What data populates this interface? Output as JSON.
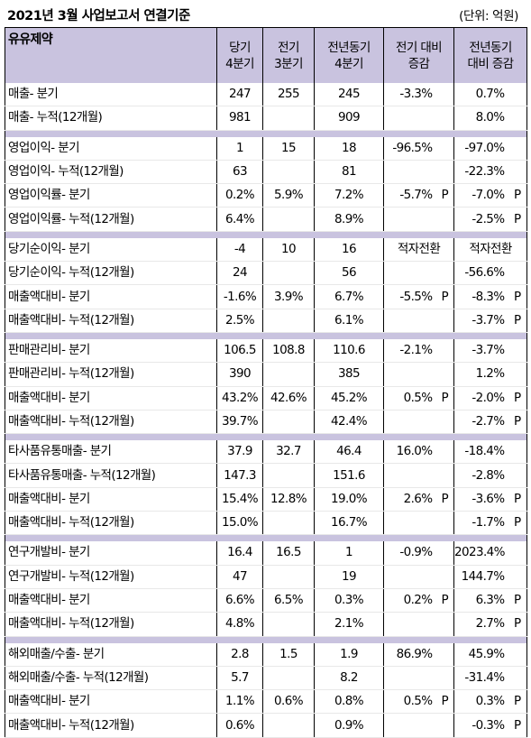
{
  "header": {
    "title": "2021년 3월 사업보고서 연결기준",
    "unit": "(단위: 억원)"
  },
  "table": {
    "company": "유유제약",
    "columns": [
      [
        "당기",
        "4분기"
      ],
      [
        "전기",
        "3분기"
      ],
      [
        "전년동기",
        "4분기"
      ],
      [
        "전기 대비",
        "증감"
      ],
      [
        "전년동기",
        "대비 증감"
      ]
    ],
    "sections": [
      {
        "rows": [
          {
            "label": "매출- 분기",
            "cur": "247",
            "prev": "255",
            "yoy": "245",
            "qoq": "-3.3%",
            "qoq_p": "",
            "yoy_chg": "0.7%",
            "yoy_p": ""
          },
          {
            "label": "매출- 누적(12개월)",
            "cur": "981",
            "prev": "",
            "yoy": "909",
            "qoq": "",
            "qoq_p": "",
            "yoy_chg": "8.0%",
            "yoy_p": ""
          }
        ]
      },
      {
        "rows": [
          {
            "label": "영업이익- 분기",
            "cur": "1",
            "prev": "15",
            "yoy": "18",
            "qoq": "-96.5%",
            "qoq_p": "",
            "yoy_chg": "-97.0%",
            "yoy_p": ""
          },
          {
            "label": "영업이익- 누적(12개월)",
            "cur": "63",
            "prev": "",
            "yoy": "81",
            "qoq": "",
            "qoq_p": "",
            "yoy_chg": "-22.3%",
            "yoy_p": ""
          },
          {
            "label": "영업이익률- 분기",
            "cur": "0.2%",
            "prev": "5.9%",
            "yoy": "7.2%",
            "qoq": "-5.7%",
            "qoq_p": "P",
            "yoy_chg": "-7.0%",
            "yoy_p": "P"
          },
          {
            "label": "영업이익률- 누적(12개월)",
            "cur": "6.4%",
            "prev": "",
            "yoy": "8.9%",
            "qoq": "",
            "qoq_p": "",
            "yoy_chg": "-2.5%",
            "yoy_p": "P"
          }
        ]
      },
      {
        "rows": [
          {
            "label": "당기순이익- 분기",
            "cur": "-4",
            "prev": "10",
            "yoy": "16",
            "qoq": "적자전환",
            "qoq_p": "",
            "yoy_chg": "적자전환",
            "yoy_p": "",
            "text_change": true
          },
          {
            "label": "당기순이익- 누적(12개월)",
            "cur": "24",
            "prev": "",
            "yoy": "56",
            "qoq": "",
            "qoq_p": "",
            "yoy_chg": "-56.6%",
            "yoy_p": ""
          },
          {
            "label": "매출액대비- 분기",
            "cur": "-1.6%",
            "prev": "3.9%",
            "yoy": "6.7%",
            "qoq": "-5.5%",
            "qoq_p": "P",
            "yoy_chg": "-8.3%",
            "yoy_p": "P"
          },
          {
            "label": "매출액대비- 누적(12개월)",
            "cur": "2.5%",
            "prev": "",
            "yoy": "6.1%",
            "qoq": "",
            "qoq_p": "",
            "yoy_chg": "-3.7%",
            "yoy_p": "P"
          }
        ]
      },
      {
        "rows": [
          {
            "label": "판매관리비- 분기",
            "cur": "106.5",
            "prev": "108.8",
            "yoy": "110.6",
            "qoq": "-2.1%",
            "qoq_p": "",
            "yoy_chg": "-3.7%",
            "yoy_p": ""
          },
          {
            "label": "판매관리비- 누적(12개월)",
            "cur": "390",
            "prev": "",
            "yoy": "385",
            "qoq": "",
            "qoq_p": "",
            "yoy_chg": "1.2%",
            "yoy_p": ""
          },
          {
            "label": "매출액대비- 분기",
            "cur": "43.2%",
            "prev": "42.6%",
            "yoy": "45.2%",
            "qoq": "0.5%",
            "qoq_p": "P",
            "yoy_chg": "-2.0%",
            "yoy_p": "P"
          },
          {
            "label": "매출액대비- 누적(12개월)",
            "cur": "39.7%",
            "prev": "",
            "yoy": "42.4%",
            "qoq": "",
            "qoq_p": "",
            "yoy_chg": "-2.7%",
            "yoy_p": "P"
          }
        ]
      },
      {
        "rows": [
          {
            "label": "타사품유통매출- 분기",
            "cur": "37.9",
            "prev": "32.7",
            "yoy": "46.4",
            "qoq": "16.0%",
            "qoq_p": "",
            "yoy_chg": "-18.4%",
            "yoy_p": ""
          },
          {
            "label": "타사품유통매출- 누적(12개월)",
            "cur": "147.3",
            "prev": "",
            "yoy": "151.6",
            "qoq": "",
            "qoq_p": "",
            "yoy_chg": "-2.8%",
            "yoy_p": ""
          },
          {
            "label": "매출액대비- 분기",
            "cur": "15.4%",
            "prev": "12.8%",
            "yoy": "19.0%",
            "qoq": "2.6%",
            "qoq_p": "P",
            "yoy_chg": "-3.6%",
            "yoy_p": "P"
          },
          {
            "label": "매출액대비- 누적(12개월)",
            "cur": "15.0%",
            "prev": "",
            "yoy": "16.7%",
            "qoq": "",
            "qoq_p": "",
            "yoy_chg": "-1.7%",
            "yoy_p": "P"
          }
        ]
      },
      {
        "rows": [
          {
            "label": "연구개발비- 분기",
            "cur": "16.4",
            "prev": "16.5",
            "yoy": "1",
            "qoq": "-0.9%",
            "qoq_p": "",
            "yoy_chg": "2023.4%",
            "yoy_p": ""
          },
          {
            "label": "연구개발비- 누적(12개월)",
            "cur": "47",
            "prev": "",
            "yoy": "19",
            "qoq": "",
            "qoq_p": "",
            "yoy_chg": "144.7%",
            "yoy_p": ""
          },
          {
            "label": "매출액대비- 분기",
            "cur": "6.6%",
            "prev": "6.5%",
            "yoy": "0.3%",
            "qoq": "0.2%",
            "qoq_p": "P",
            "yoy_chg": "6.3%",
            "yoy_p": "P"
          },
          {
            "label": "매출액대비- 누적(12개월)",
            "cur": "4.8%",
            "prev": "",
            "yoy": "2.1%",
            "qoq": "",
            "qoq_p": "",
            "yoy_chg": "2.7%",
            "yoy_p": "P"
          }
        ]
      },
      {
        "rows": [
          {
            "label": "해외매출/수출- 분기",
            "cur": "2.8",
            "prev": "1.5",
            "yoy": "1.9",
            "qoq": "86.9%",
            "qoq_p": "",
            "yoy_chg": "45.9%",
            "yoy_p": ""
          },
          {
            "label": "해외매출/수출- 누적(12개월)",
            "cur": "5.7",
            "prev": "",
            "yoy": "8.2",
            "qoq": "",
            "qoq_p": "",
            "yoy_chg": "-31.4%",
            "yoy_p": ""
          },
          {
            "label": "매출액대비- 분기",
            "cur": "1.1%",
            "prev": "0.6%",
            "yoy": "0.8%",
            "qoq": "0.5%",
            "qoq_p": "P",
            "yoy_chg": "0.3%",
            "yoy_p": "P"
          },
          {
            "label": "매출액대비- 누적(12개월)",
            "cur": "0.6%",
            "prev": "",
            "yoy": "0.9%",
            "qoq": "",
            "qoq_p": "",
            "yoy_chg": "-0.3%",
            "yoy_p": "P"
          }
        ]
      }
    ]
  }
}
